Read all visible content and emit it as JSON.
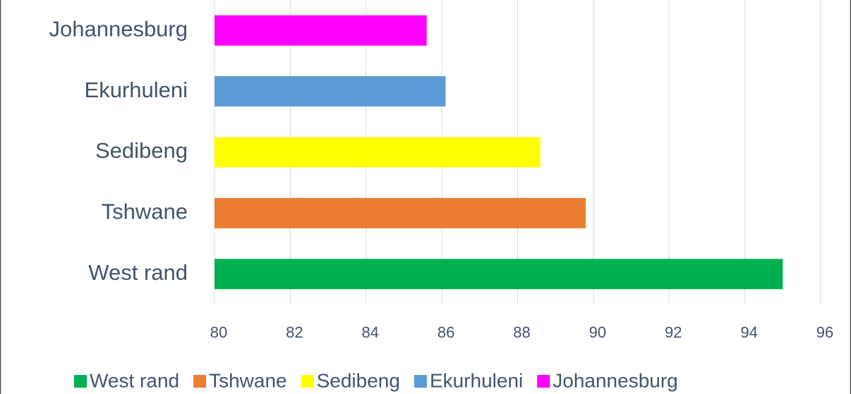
{
  "chart_data": {
    "type": "bar",
    "orientation": "horizontal",
    "categories": [
      "West rand",
      "Tshwane",
      "Sedibeng",
      "Ekurhuleni",
      "Johannesburg"
    ],
    "values": [
      95,
      89.8,
      88.6,
      86.1,
      85.6
    ],
    "colors": [
      "#00b050",
      "#ed7d31",
      "#ffff00",
      "#5b9bd5",
      "#ff00ff"
    ],
    "xlim": [
      80,
      96
    ],
    "xticks": [
      80,
      82,
      84,
      86,
      88,
      90,
      92,
      94,
      96
    ],
    "grid": true,
    "legend": "bottom"
  }
}
